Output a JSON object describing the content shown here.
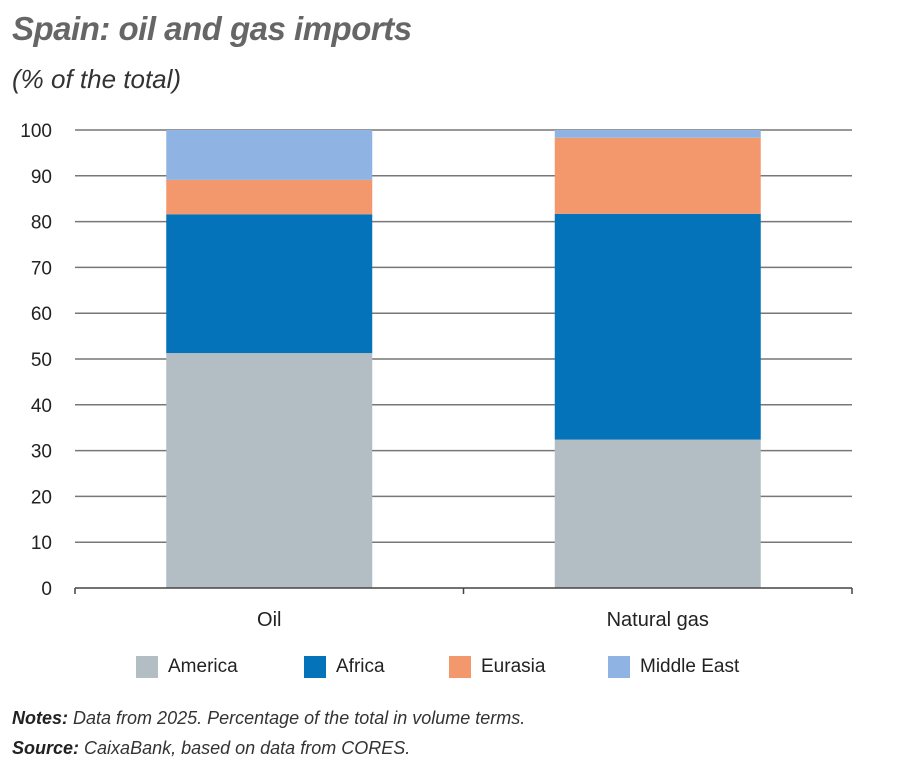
{
  "title": "Spain: oil and gas imports",
  "subtitle": "(% of the total)",
  "notes_label": "Notes:",
  "notes_text": "Data from 2025. Percentage of the total in volume terms.",
  "source_label": "Source:",
  "source_text": "CaixaBank, based on data from CORES.",
  "chart_data": {
    "type": "bar",
    "stacked": true,
    "title": "Spain: oil and gas imports",
    "ylabel": "(% of the total)",
    "xlabel": "",
    "ylim": [
      0,
      100
    ],
    "yticks": [
      "0",
      "10",
      "20",
      "30",
      "40",
      "50",
      "60",
      "70",
      "80",
      "90",
      "100"
    ],
    "categories": [
      "Oil",
      "Natural gas"
    ],
    "legend_position": "bottom",
    "grid": true,
    "series": [
      {
        "name": "America",
        "color": "#b2bec3",
        "values": [
          51.3,
          32.4
        ]
      },
      {
        "name": "Africa",
        "color": "#0573b9",
        "values": [
          30.3,
          49.3
        ]
      },
      {
        "name": "Eurasia",
        "color": "#f3986d",
        "values": [
          7.5,
          16.6
        ]
      },
      {
        "name": "Middle East",
        "color": "#8fb3e2",
        "values": [
          10.9,
          1.7
        ]
      }
    ]
  }
}
